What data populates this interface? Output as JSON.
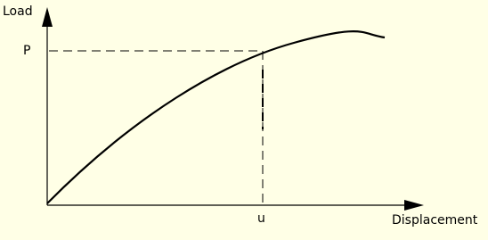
{
  "axes": {
    "y_label": "Load",
    "x_label": "Displacement"
  },
  "markers": {
    "load_level": "P",
    "displacement": "u"
  }
}
